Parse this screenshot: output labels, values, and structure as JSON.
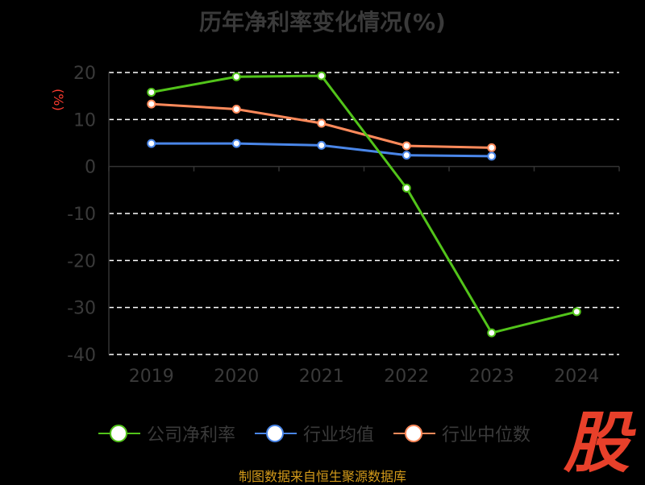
{
  "title": "历年净利率变化情况(%)",
  "source": "制图数据来自恒生聚源数据库",
  "logo_text": "股",
  "colors": {
    "background": "#000000",
    "title": "#3a3a3a",
    "axis_text": "#3a3a3a",
    "ylabel": "#ff3b2f",
    "grid": "#ffffff",
    "source": "#d39a1a",
    "logo": "#e8402a"
  },
  "chart_data": {
    "type": "line",
    "title": "历年净利率变化情况(%)",
    "xlabel": "",
    "ylabel": "(%)",
    "ylim": [
      -40,
      20
    ],
    "yticks": [
      20,
      10,
      0,
      -10,
      -20,
      -30,
      -40
    ],
    "categories": [
      "2019",
      "2020",
      "2021",
      "2022",
      "2023",
      "2024"
    ],
    "grid": true,
    "legend_position": "bottom",
    "series": [
      {
        "name": "公司净利率",
        "color": "#52c41a",
        "values": [
          15.8,
          19.1,
          19.3,
          -4.6,
          -35.4,
          -30.9
        ]
      },
      {
        "name": "行业均值",
        "color": "#4a86e8",
        "values": [
          4.9,
          4.9,
          4.5,
          2.4,
          2.2,
          null
        ]
      },
      {
        "name": "行业中位数",
        "color": "#ff8a5b",
        "values": [
          13.3,
          12.2,
          9.2,
          4.4,
          4.0,
          null
        ]
      }
    ]
  }
}
